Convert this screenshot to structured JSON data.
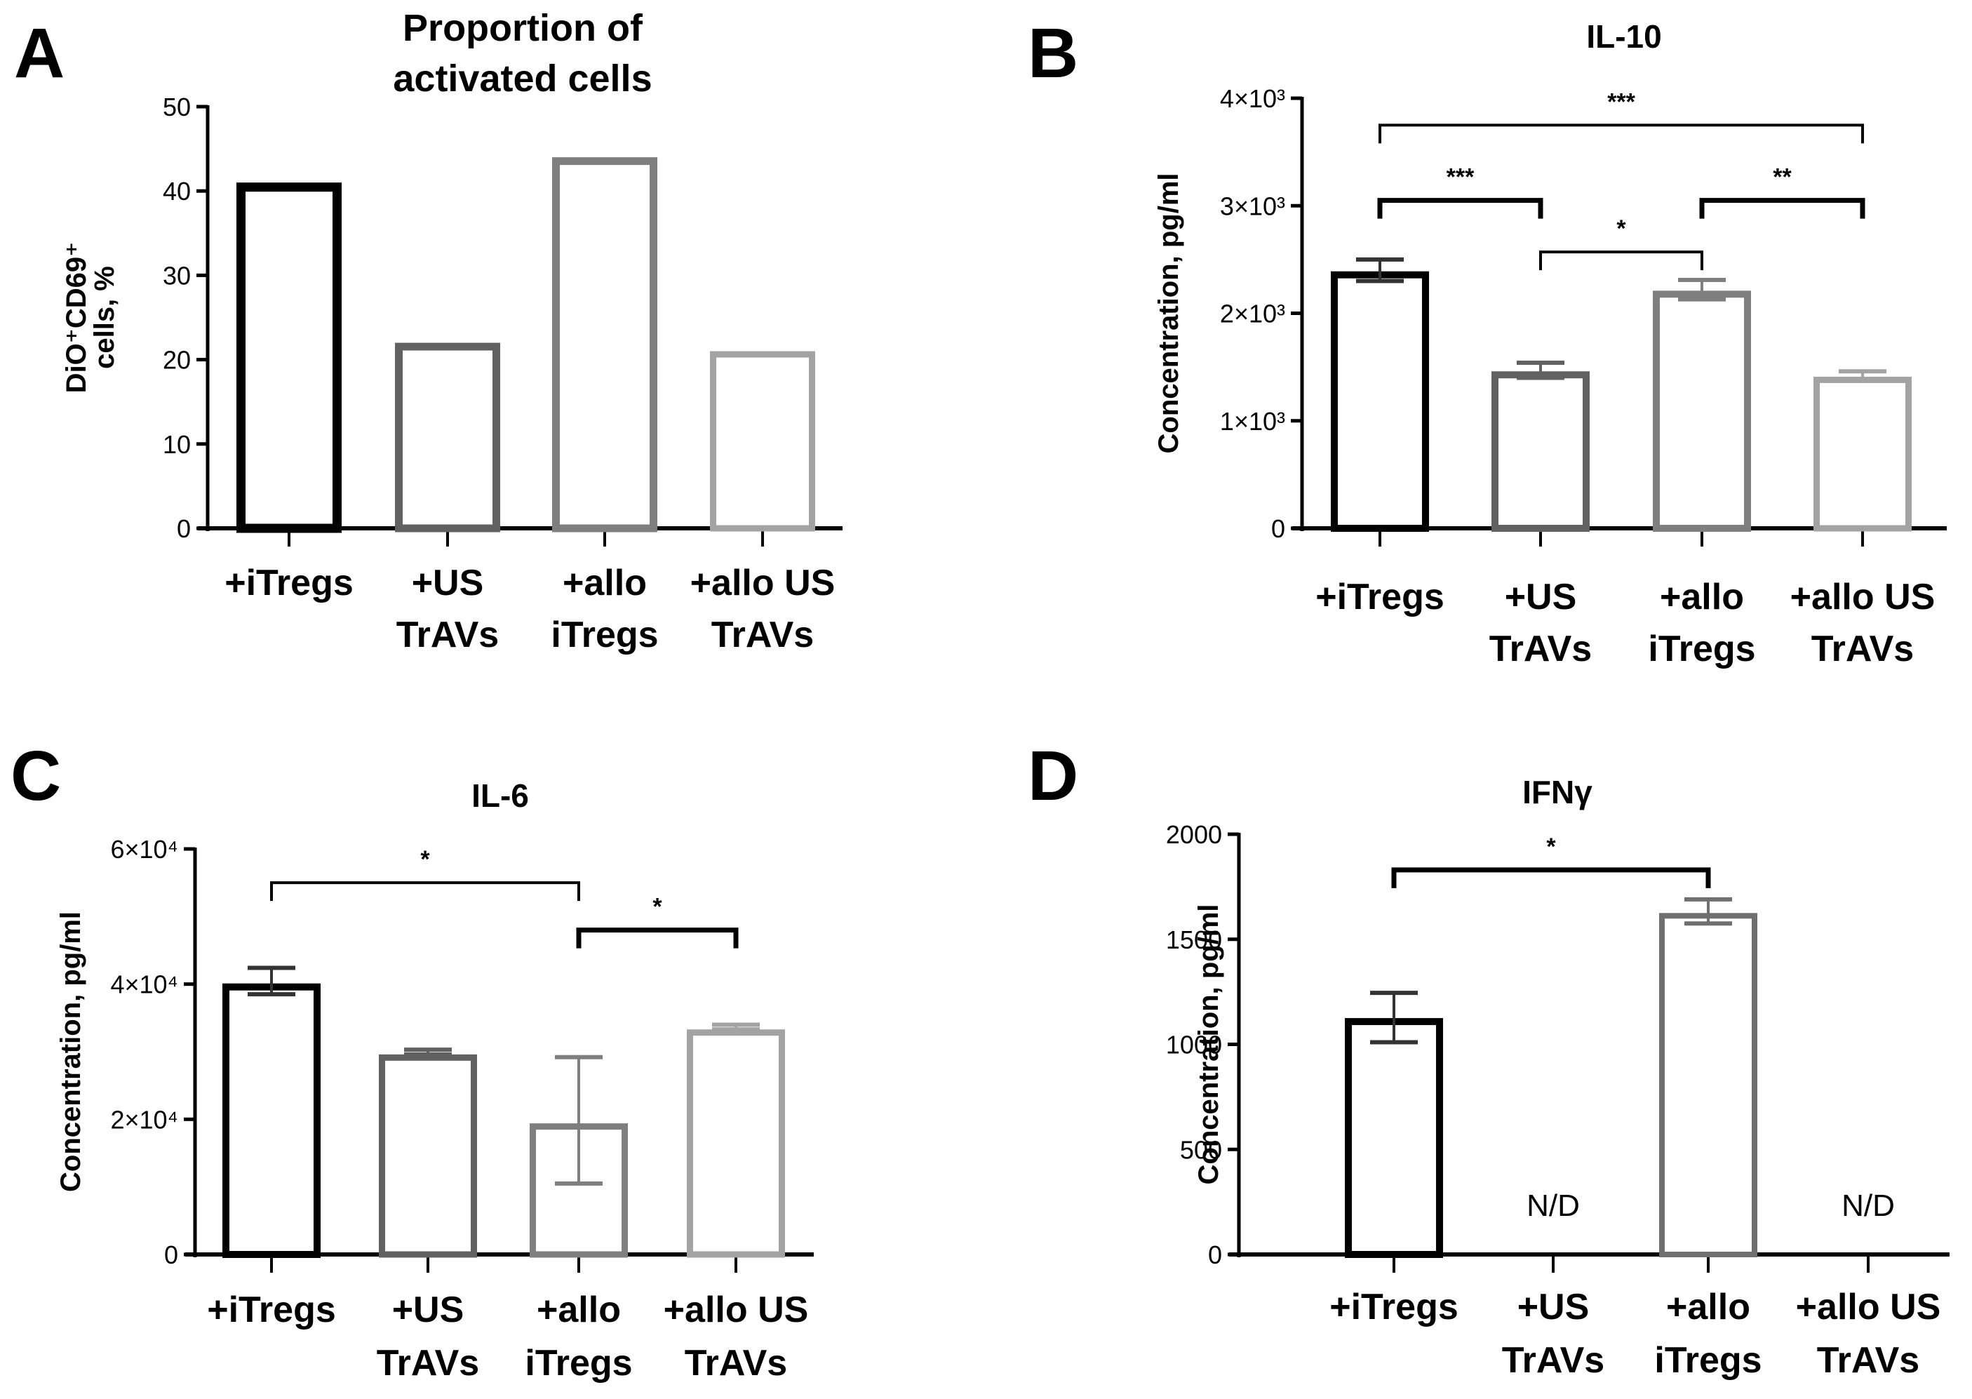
{
  "chart_data": [
    {
      "panel": "A",
      "type": "bar",
      "title": "Proportion of activated cells",
      "title_lines": [
        "Proportion of",
        "activated cells"
      ],
      "ylabel_lines": [
        "DiO⁺CD69⁺",
        "cells, %"
      ],
      "xlabel": "",
      "categories": [
        [
          "+iTregs"
        ],
        [
          "+US",
          "TrAVs"
        ],
        [
          "+allo",
          "iTregs"
        ],
        [
          "+allo US",
          "TrAVs"
        ]
      ],
      "values": [
        41,
        22,
        44,
        21
      ],
      "errors": null,
      "ylim": [
        0,
        50
      ],
      "yticks": [
        0,
        10,
        20,
        30,
        40,
        50
      ],
      "ytick_labels": [
        "0",
        "10",
        "20",
        "30",
        "40",
        "50"
      ],
      "bar_colors": [
        "#000000",
        "#616161",
        "#7f7f7f",
        "#a3a3a3"
      ],
      "comparisons": [],
      "grid": false,
      "legend": "none"
    },
    {
      "panel": "B",
      "type": "bar",
      "title": "IL-10",
      "ylabel_lines": [
        "Concentration, pg/ml"
      ],
      "xlabel": "",
      "categories": [
        [
          "+iTregs"
        ],
        [
          "+US",
          "TrAVs"
        ],
        [
          "+allo",
          "iTregs"
        ],
        [
          "+allo US",
          "TrAVs"
        ]
      ],
      "values": [
        2390,
        1460,
        2210,
        1410
      ],
      "errors": [
        [
          2300,
          2500
        ],
        [
          1400,
          1540
        ],
        [
          2130,
          2310
        ],
        [
          1390,
          1460
        ]
      ],
      "ylim": [
        0,
        4000
      ],
      "yticks": [
        0,
        1000,
        2000,
        3000,
        4000
      ],
      "ytick_labels": [
        "0",
        "1×10³",
        "2×10³",
        "3×10³",
        "4×10³"
      ],
      "bar_colors": [
        "#000000",
        "#616161",
        "#7f7f7f",
        "#a3a3a3"
      ],
      "comparisons": [
        {
          "from": 0,
          "to": 3,
          "label": "***",
          "level": 3750,
          "thick": false
        },
        {
          "from": 0,
          "to": 1,
          "label": "***",
          "level": 3050,
          "thick": true
        },
        {
          "from": 2,
          "to": 3,
          "label": "**",
          "level": 3050,
          "thick": true
        },
        {
          "from": 1,
          "to": 2,
          "label": "*",
          "level": 2570,
          "thick": false
        }
      ],
      "grid": false,
      "legend": "none"
    },
    {
      "panel": "C",
      "type": "bar",
      "title": "IL-6",
      "ylabel_lines": [
        "Concentration, pg/ml"
      ],
      "xlabel": "",
      "categories": [
        [
          "+iTregs"
        ],
        [
          "+US",
          "TrAVs"
        ],
        [
          "+allo",
          "iTregs"
        ],
        [
          "+allo US",
          "TrAVs"
        ]
      ],
      "values": [
        40100,
        29600,
        19400,
        33300
      ],
      "errors": [
        [
          38500,
          42400
        ],
        [
          29600,
          30300
        ],
        [
          10500,
          29200
        ],
        [
          33300,
          34000
        ]
      ],
      "ylim": [
        0,
        60000
      ],
      "yticks": [
        0,
        20000,
        40000,
        60000
      ],
      "ytick_labels": [
        "0",
        "2×10⁴",
        "4×10⁴",
        "6×10⁴"
      ],
      "bar_colors": [
        "#000000",
        "#616161",
        "#7f7f7f",
        "#a3a3a3"
      ],
      "comparisons": [
        {
          "from": 0,
          "to": 2,
          "label": "*",
          "level": 55000,
          "thick": false
        },
        {
          "from": 2,
          "to": 3,
          "label": "*",
          "level": 48000,
          "thick": true
        }
      ],
      "grid": false,
      "legend": "none"
    },
    {
      "panel": "D",
      "type": "bar",
      "title": "IFNγ",
      "ylabel_lines": [
        "Concentration, pg/ml"
      ],
      "xlabel": "",
      "categories": [
        [
          "+iTregs"
        ],
        [
          "+US",
          "TrAVs"
        ],
        [
          "+allo",
          "iTregs"
        ],
        [
          "+allo US",
          "TrAVs"
        ]
      ],
      "values": [
        1125,
        null,
        1625,
        null
      ],
      "errors": [
        [
          1010,
          1245
        ],
        null,
        [
          1575,
          1690
        ],
        null
      ],
      "not_detected_label": "N/D",
      "ylim": [
        0,
        2000
      ],
      "yticks": [
        0,
        500,
        1000,
        1500,
        2000
      ],
      "ytick_labels": [
        "0",
        "500",
        "1000",
        "1500",
        "2000"
      ],
      "bar_colors": [
        "#000000",
        "#616161",
        "#6f6f6f",
        "#a3a3a3"
      ],
      "comparisons": [
        {
          "from": 0,
          "to": 2,
          "label": "*",
          "level": 1830,
          "thick": true
        }
      ],
      "grid": false,
      "legend": "none"
    }
  ]
}
